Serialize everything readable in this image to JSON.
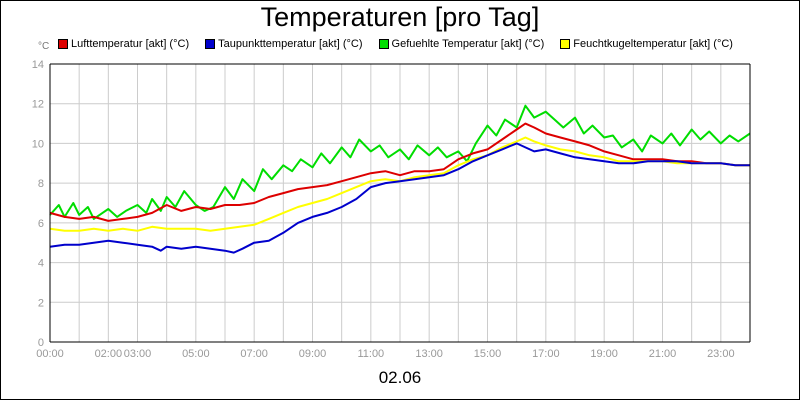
{
  "chart_data": {
    "type": "line",
    "title": "Temperaturen [pro Tag]",
    "ylabel": "°C",
    "xlabel": "02.06",
    "ylim": [
      0,
      14
    ],
    "yticks": [
      0,
      2,
      4,
      6,
      8,
      10,
      12,
      14
    ],
    "xlim": [
      0,
      24
    ],
    "xticks": [
      {
        "label": "00:00",
        "hour": 0
      },
      {
        "label": "02:00",
        "hour": 2
      },
      {
        "label": "03:00",
        "hour": 3
      },
      {
        "label": "05:00",
        "hour": 5
      },
      {
        "label": "07:00",
        "hour": 7
      },
      {
        "label": "09:00",
        "hour": 9
      },
      {
        "label": "11:00",
        "hour": 11
      },
      {
        "label": "13:00",
        "hour": 13
      },
      {
        "label": "15:00",
        "hour": 15
      },
      {
        "label": "17:00",
        "hour": 17
      },
      {
        "label": "19:00",
        "hour": 19
      },
      {
        "label": "21:00",
        "hour": 21
      },
      {
        "label": "23:00",
        "hour": 23
      }
    ],
    "series": [
      {
        "name": "Gefuehlte Temperatur [akt] (°C)",
        "color": "#00dd00",
        "x": [
          0,
          0.3,
          0.5,
          0.8,
          1,
          1.3,
          1.5,
          1.8,
          2,
          2.3,
          2.6,
          3,
          3.3,
          3.5,
          3.8,
          4,
          4.3,
          4.6,
          5,
          5.3,
          5.6,
          6,
          6.3,
          6.6,
          7,
          7.3,
          7.6,
          8,
          8.3,
          8.6,
          9,
          9.3,
          9.6,
          10,
          10.3,
          10.6,
          11,
          11.3,
          11.6,
          12,
          12.3,
          12.6,
          13,
          13.3,
          13.6,
          14,
          14.3,
          14.6,
          15,
          15.3,
          15.6,
          16,
          16.3,
          16.6,
          17,
          17.3,
          17.6,
          18,
          18.3,
          18.6,
          19,
          19.3,
          19.6,
          20,
          20.3,
          20.6,
          21,
          21.3,
          21.6,
          22,
          22.3,
          22.6,
          23,
          23.3,
          23.6,
          24
        ],
        "y": [
          6.4,
          6.9,
          6.3,
          7.0,
          6.4,
          6.8,
          6.2,
          6.5,
          6.7,
          6.3,
          6.6,
          6.9,
          6.5,
          7.2,
          6.6,
          7.3,
          6.8,
          7.6,
          6.9,
          6.6,
          6.8,
          7.8,
          7.2,
          8.2,
          7.6,
          8.7,
          8.2,
          8.9,
          8.6,
          9.2,
          8.8,
          9.5,
          9.0,
          9.8,
          9.3,
          10.2,
          9.6,
          9.9,
          9.3,
          9.7,
          9.2,
          9.9,
          9.4,
          9.8,
          9.3,
          9.6,
          9.1,
          10.0,
          10.9,
          10.4,
          11.2,
          10.8,
          11.9,
          11.3,
          11.6,
          11.2,
          10.8,
          11.3,
          10.5,
          10.9,
          10.3,
          10.4,
          9.8,
          10.2,
          9.6,
          10.4,
          10.0,
          10.5,
          9.9,
          10.7,
          10.2,
          10.6,
          10.0,
          10.4,
          10.1,
          10.5
        ]
      },
      {
        "name": "Lufttemperatur [akt] (°C)",
        "color": "#dd0000",
        "x": [
          0,
          0.5,
          1,
          1.5,
          2,
          2.5,
          3,
          3.5,
          4,
          4.5,
          5,
          5.5,
          6,
          6.5,
          7,
          7.5,
          8,
          8.5,
          9,
          9.5,
          10,
          10.5,
          11,
          11.5,
          12,
          12.5,
          13,
          13.5,
          14,
          14.5,
          15,
          15.5,
          16,
          16.3,
          16.6,
          17,
          17.5,
          18,
          18.5,
          19,
          19.5,
          20,
          20.5,
          21,
          21.5,
          22,
          22.5,
          23,
          23.5,
          24
        ],
        "y": [
          6.5,
          6.3,
          6.2,
          6.3,
          6.1,
          6.2,
          6.3,
          6.5,
          6.9,
          6.6,
          6.8,
          6.7,
          6.9,
          6.9,
          7.0,
          7.3,
          7.5,
          7.7,
          7.8,
          7.9,
          8.1,
          8.3,
          8.5,
          8.6,
          8.4,
          8.6,
          8.6,
          8.7,
          9.2,
          9.5,
          9.7,
          10.2,
          10.7,
          11.0,
          10.8,
          10.5,
          10.3,
          10.1,
          9.9,
          9.6,
          9.4,
          9.2,
          9.2,
          9.2,
          9.1,
          9.1,
          9.0,
          9.0,
          8.9,
          8.9
        ]
      },
      {
        "name": "Feuchtkugeltemperatur [akt] (°C)",
        "color": "#ffff00",
        "x": [
          0,
          0.5,
          1,
          1.5,
          2,
          2.5,
          3,
          3.5,
          4,
          4.5,
          5,
          5.5,
          6,
          6.5,
          7,
          7.5,
          8,
          8.5,
          9,
          9.5,
          10,
          10.5,
          11,
          11.5,
          12,
          12.5,
          13,
          13.5,
          14,
          14.5,
          15,
          15.5,
          16,
          16.3,
          16.6,
          17,
          17.5,
          18,
          18.5,
          19,
          19.5,
          20,
          20.5,
          21,
          21.5,
          22,
          22.5,
          23,
          23.5,
          24
        ],
        "y": [
          5.7,
          5.6,
          5.6,
          5.7,
          5.6,
          5.7,
          5.6,
          5.8,
          5.7,
          5.7,
          5.7,
          5.6,
          5.7,
          5.8,
          5.9,
          6.2,
          6.5,
          6.8,
          7.0,
          7.2,
          7.5,
          7.8,
          8.1,
          8.2,
          8.1,
          8.3,
          8.4,
          8.5,
          8.9,
          9.2,
          9.4,
          9.8,
          10.1,
          10.3,
          10.1,
          9.9,
          9.7,
          9.6,
          9.4,
          9.3,
          9.1,
          9.1,
          9.1,
          9.1,
          9.0,
          9.0,
          9.0,
          9.0,
          8.9,
          8.9
        ]
      },
      {
        "name": "Taupunkttemperatur [akt] (°C)",
        "color": "#0000cc",
        "x": [
          0,
          0.5,
          1,
          1.5,
          2,
          2.5,
          3,
          3.5,
          3.8,
          4,
          4.5,
          5,
          5.5,
          6,
          6.3,
          6.6,
          7,
          7.5,
          8,
          8.5,
          9,
          9.5,
          10,
          10.5,
          11,
          11.5,
          12,
          12.5,
          13,
          13.5,
          14,
          14.5,
          15,
          15.5,
          16,
          16.3,
          16.6,
          17,
          17.5,
          18,
          18.5,
          19,
          19.5,
          20,
          20.5,
          21,
          21.5,
          22,
          22.5,
          23,
          23.5,
          24
        ],
        "y": [
          4.8,
          4.9,
          4.9,
          5.0,
          5.1,
          5.0,
          4.9,
          4.8,
          4.6,
          4.8,
          4.7,
          4.8,
          4.7,
          4.6,
          4.5,
          4.7,
          5.0,
          5.1,
          5.5,
          6.0,
          6.3,
          6.5,
          6.8,
          7.2,
          7.8,
          8.0,
          8.1,
          8.2,
          8.3,
          8.4,
          8.7,
          9.1,
          9.4,
          9.7,
          10.0,
          9.8,
          9.6,
          9.7,
          9.5,
          9.3,
          9.2,
          9.1,
          9.0,
          9.0,
          9.1,
          9.1,
          9.1,
          9.0,
          9.0,
          9.0,
          8.9,
          8.9
        ]
      }
    ]
  },
  "legend": {
    "items": [
      {
        "label": "Lufttemperatur [akt] (°C)",
        "color": "#dd0000"
      },
      {
        "label": "Taupunkttemperatur [akt] (°C)",
        "color": "#0000cc"
      },
      {
        "label": "Gefuehlte Temperatur [akt] (°C)",
        "color": "#00dd00"
      },
      {
        "label": "Feuchtkugeltemperatur [akt] (°C)",
        "color": "#ffff00"
      }
    ]
  }
}
